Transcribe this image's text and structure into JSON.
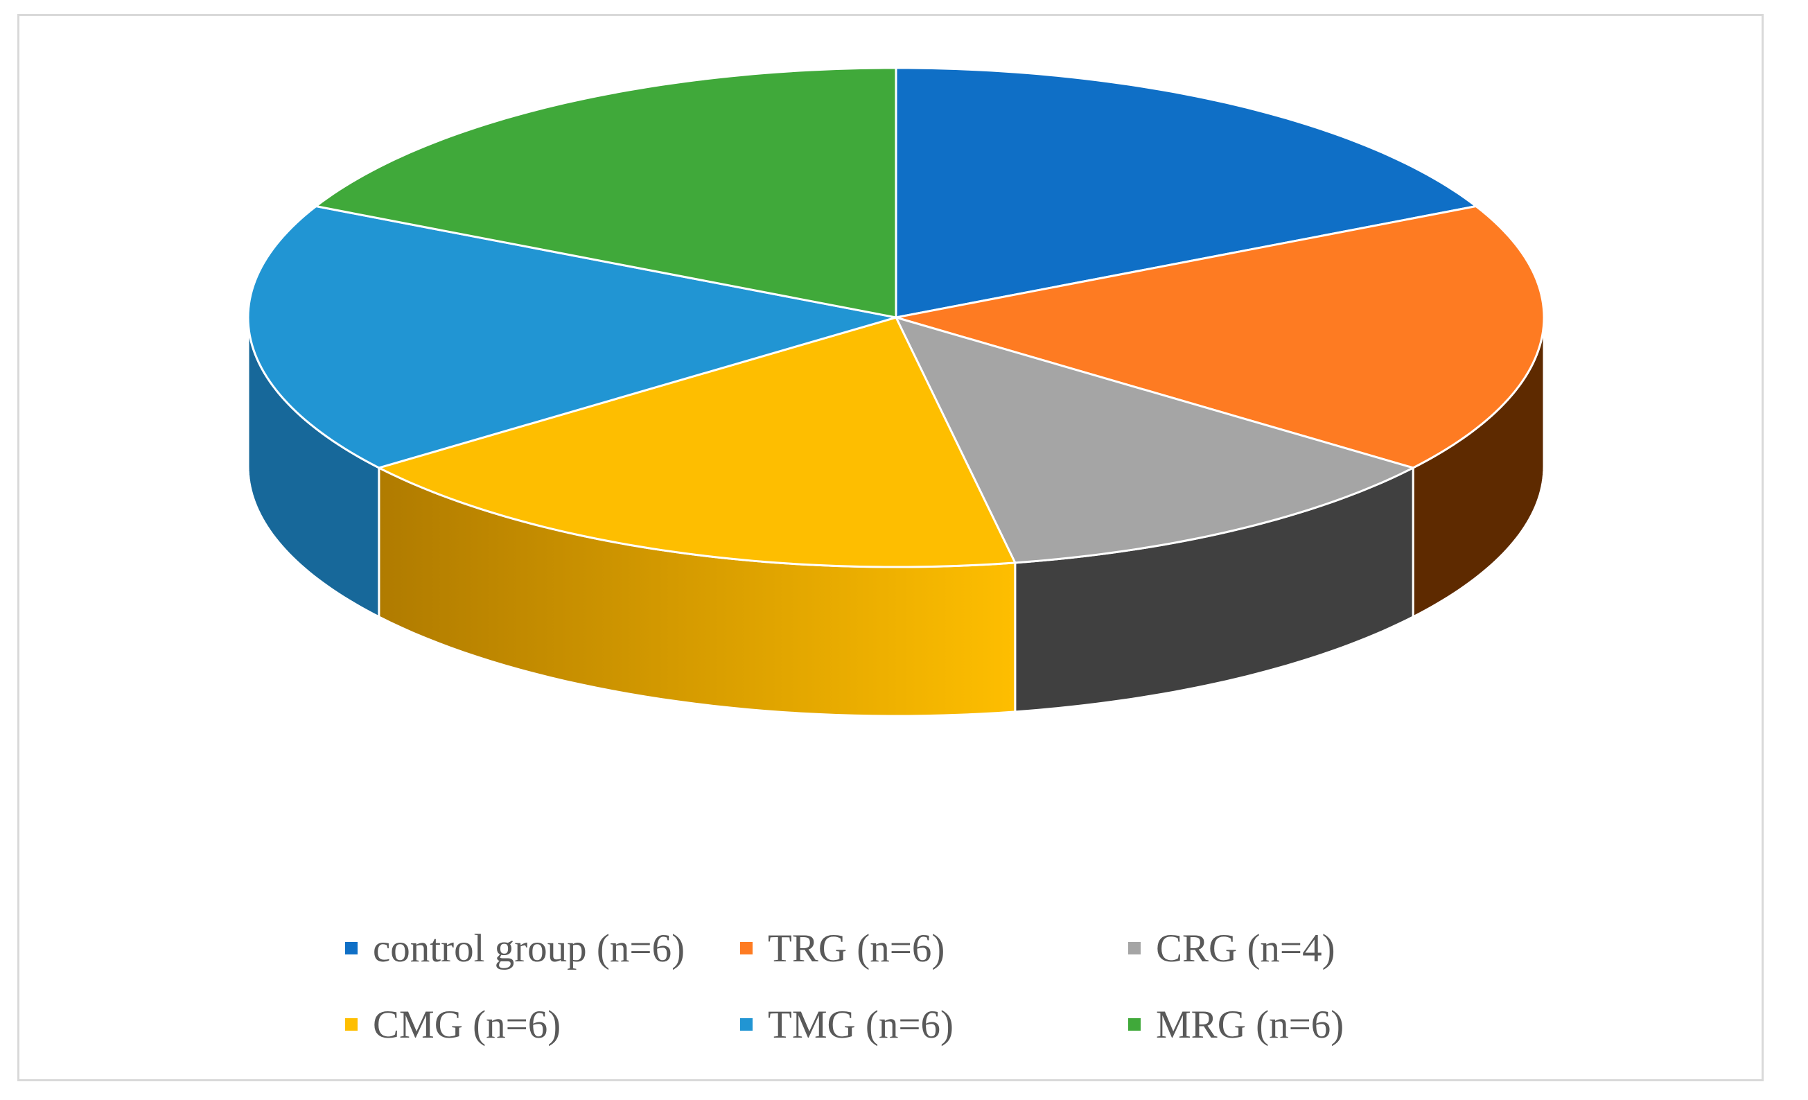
{
  "chart_data": {
    "type": "pie",
    "style": "3d",
    "categories": [
      "control group (n=6)",
      "TRG (n=6)",
      "CRG (n=4)",
      "CMG (n=6)",
      "TMG (n=6)",
      "MRG (n=6)"
    ],
    "values": [
      6,
      6,
      4,
      6,
      6,
      6
    ],
    "colors": [
      "#0f6fc6",
      "#fe7b22",
      "#a5a5a5",
      "#febe00",
      "#2195d3",
      "#40a93a"
    ],
    "side_colors": [
      "#0a4e8b",
      "#5e2a00",
      "#404040",
      "#b07b00",
      "#17689a",
      "#2c7728"
    ],
    "legend_position": "bottom"
  }
}
